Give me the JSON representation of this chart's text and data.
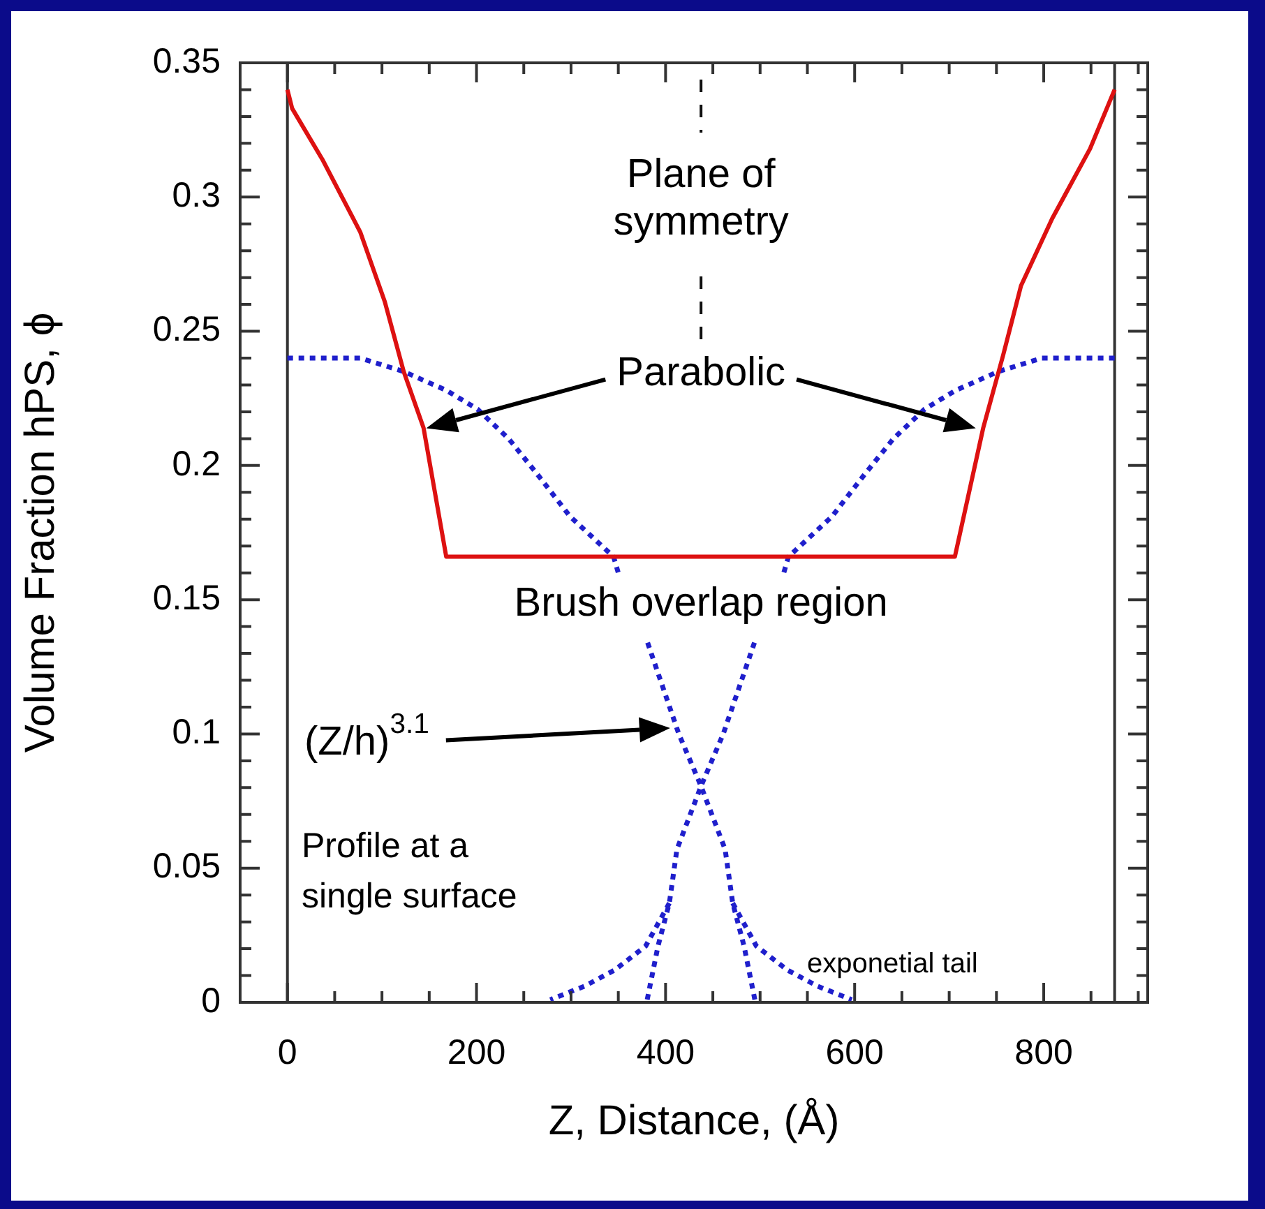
{
  "chart_data": {
    "type": "line",
    "xlabel": "Z, Distance, (Å)",
    "ylabel": "Volume Fraction hPS, ϕ",
    "xlim": [
      -50,
      910
    ],
    "xticks": [
      0,
      200,
      400,
      600,
      800
    ],
    "ylim": [
      0,
      0.35
    ],
    "yticks": [
      0,
      0.05,
      0.1,
      0.15,
      0.2,
      0.25,
      0.3,
      0.35
    ],
    "grid": false,
    "legend": false,
    "series": [
      {
        "color": "#dd1111",
        "line_style": "solid",
        "x": [
          0,
          5,
          37,
          77,
          103,
          123,
          144,
          168,
          706,
          736,
          757,
          776,
          809,
          849,
          875
        ],
        "values": [
          0.34,
          0.333,
          0.314,
          0.287,
          0.261,
          0.235,
          0.214,
          0.166,
          0.166,
          0.214,
          0.241,
          0.267,
          0.292,
          0.318,
          0.34
        ]
      },
      {
        "color": "#1f1fcc",
        "line_style": "dotted",
        "x": [
          0,
          77,
          123,
          168,
          201,
          234,
          266,
          299,
          345,
          350,
          365,
          381,
          414,
          437,
          463,
          471,
          483,
          495
        ],
        "values": [
          0.24,
          0.24,
          0.235,
          0.228,
          0.221,
          0.21,
          0.196,
          0.181,
          0.166,
          0.16,
          null,
          0.134,
          0.1,
          0.081,
          0.057,
          0.037,
          0.021,
          0
        ]
      },
      {
        "color": "#1f1fcc",
        "line_style": "dotted",
        "x": [
          875,
          798,
          752,
          707,
          674,
          641,
          609,
          576,
          530,
          525,
          510,
          494,
          461,
          438,
          412,
          404,
          392,
          380
        ],
        "values": [
          0.24,
          0.24,
          0.235,
          0.228,
          0.221,
          0.21,
          0.196,
          0.181,
          0.166,
          0.16,
          null,
          0.134,
          0.1,
          0.081,
          0.057,
          0.037,
          0.021,
          0
        ]
      },
      {
        "color": "#1f1fcc",
        "line_style": "dotted",
        "x": [
          471,
          496,
          529,
          561,
          597
        ],
        "values": [
          0.037,
          0.021,
          0.012,
          0.006,
          0.001
        ]
      },
      {
        "color": "#1f1fcc",
        "line_style": "dotted",
        "x": [
          404,
          379,
          346,
          314,
          278
        ],
        "values": [
          0.037,
          0.021,
          0.012,
          0.006,
          0.001
        ]
      }
    ],
    "ref_lines": [
      {
        "axis": "x",
        "value": 0,
        "color": "#333333",
        "line_style": "solid"
      },
      {
        "axis": "x",
        "value": 875,
        "color": "#333333",
        "line_style": "solid"
      },
      {
        "axis": "x",
        "value": 437.5,
        "label": "Plane of symmetry",
        "color": "#111111",
        "line_style": "dashed"
      }
    ],
    "annotations": [
      "Parabolic",
      {
        "text": "Brush overlap region",
        "x": 437.5,
        "y": 0.166
      },
      "(Z/h)$^{3.1}$",
      "Profile at a single surface",
      {
        "text": "exponetial tail",
        "x": 529,
        "y": 0.012
      }
    ]
  }
}
